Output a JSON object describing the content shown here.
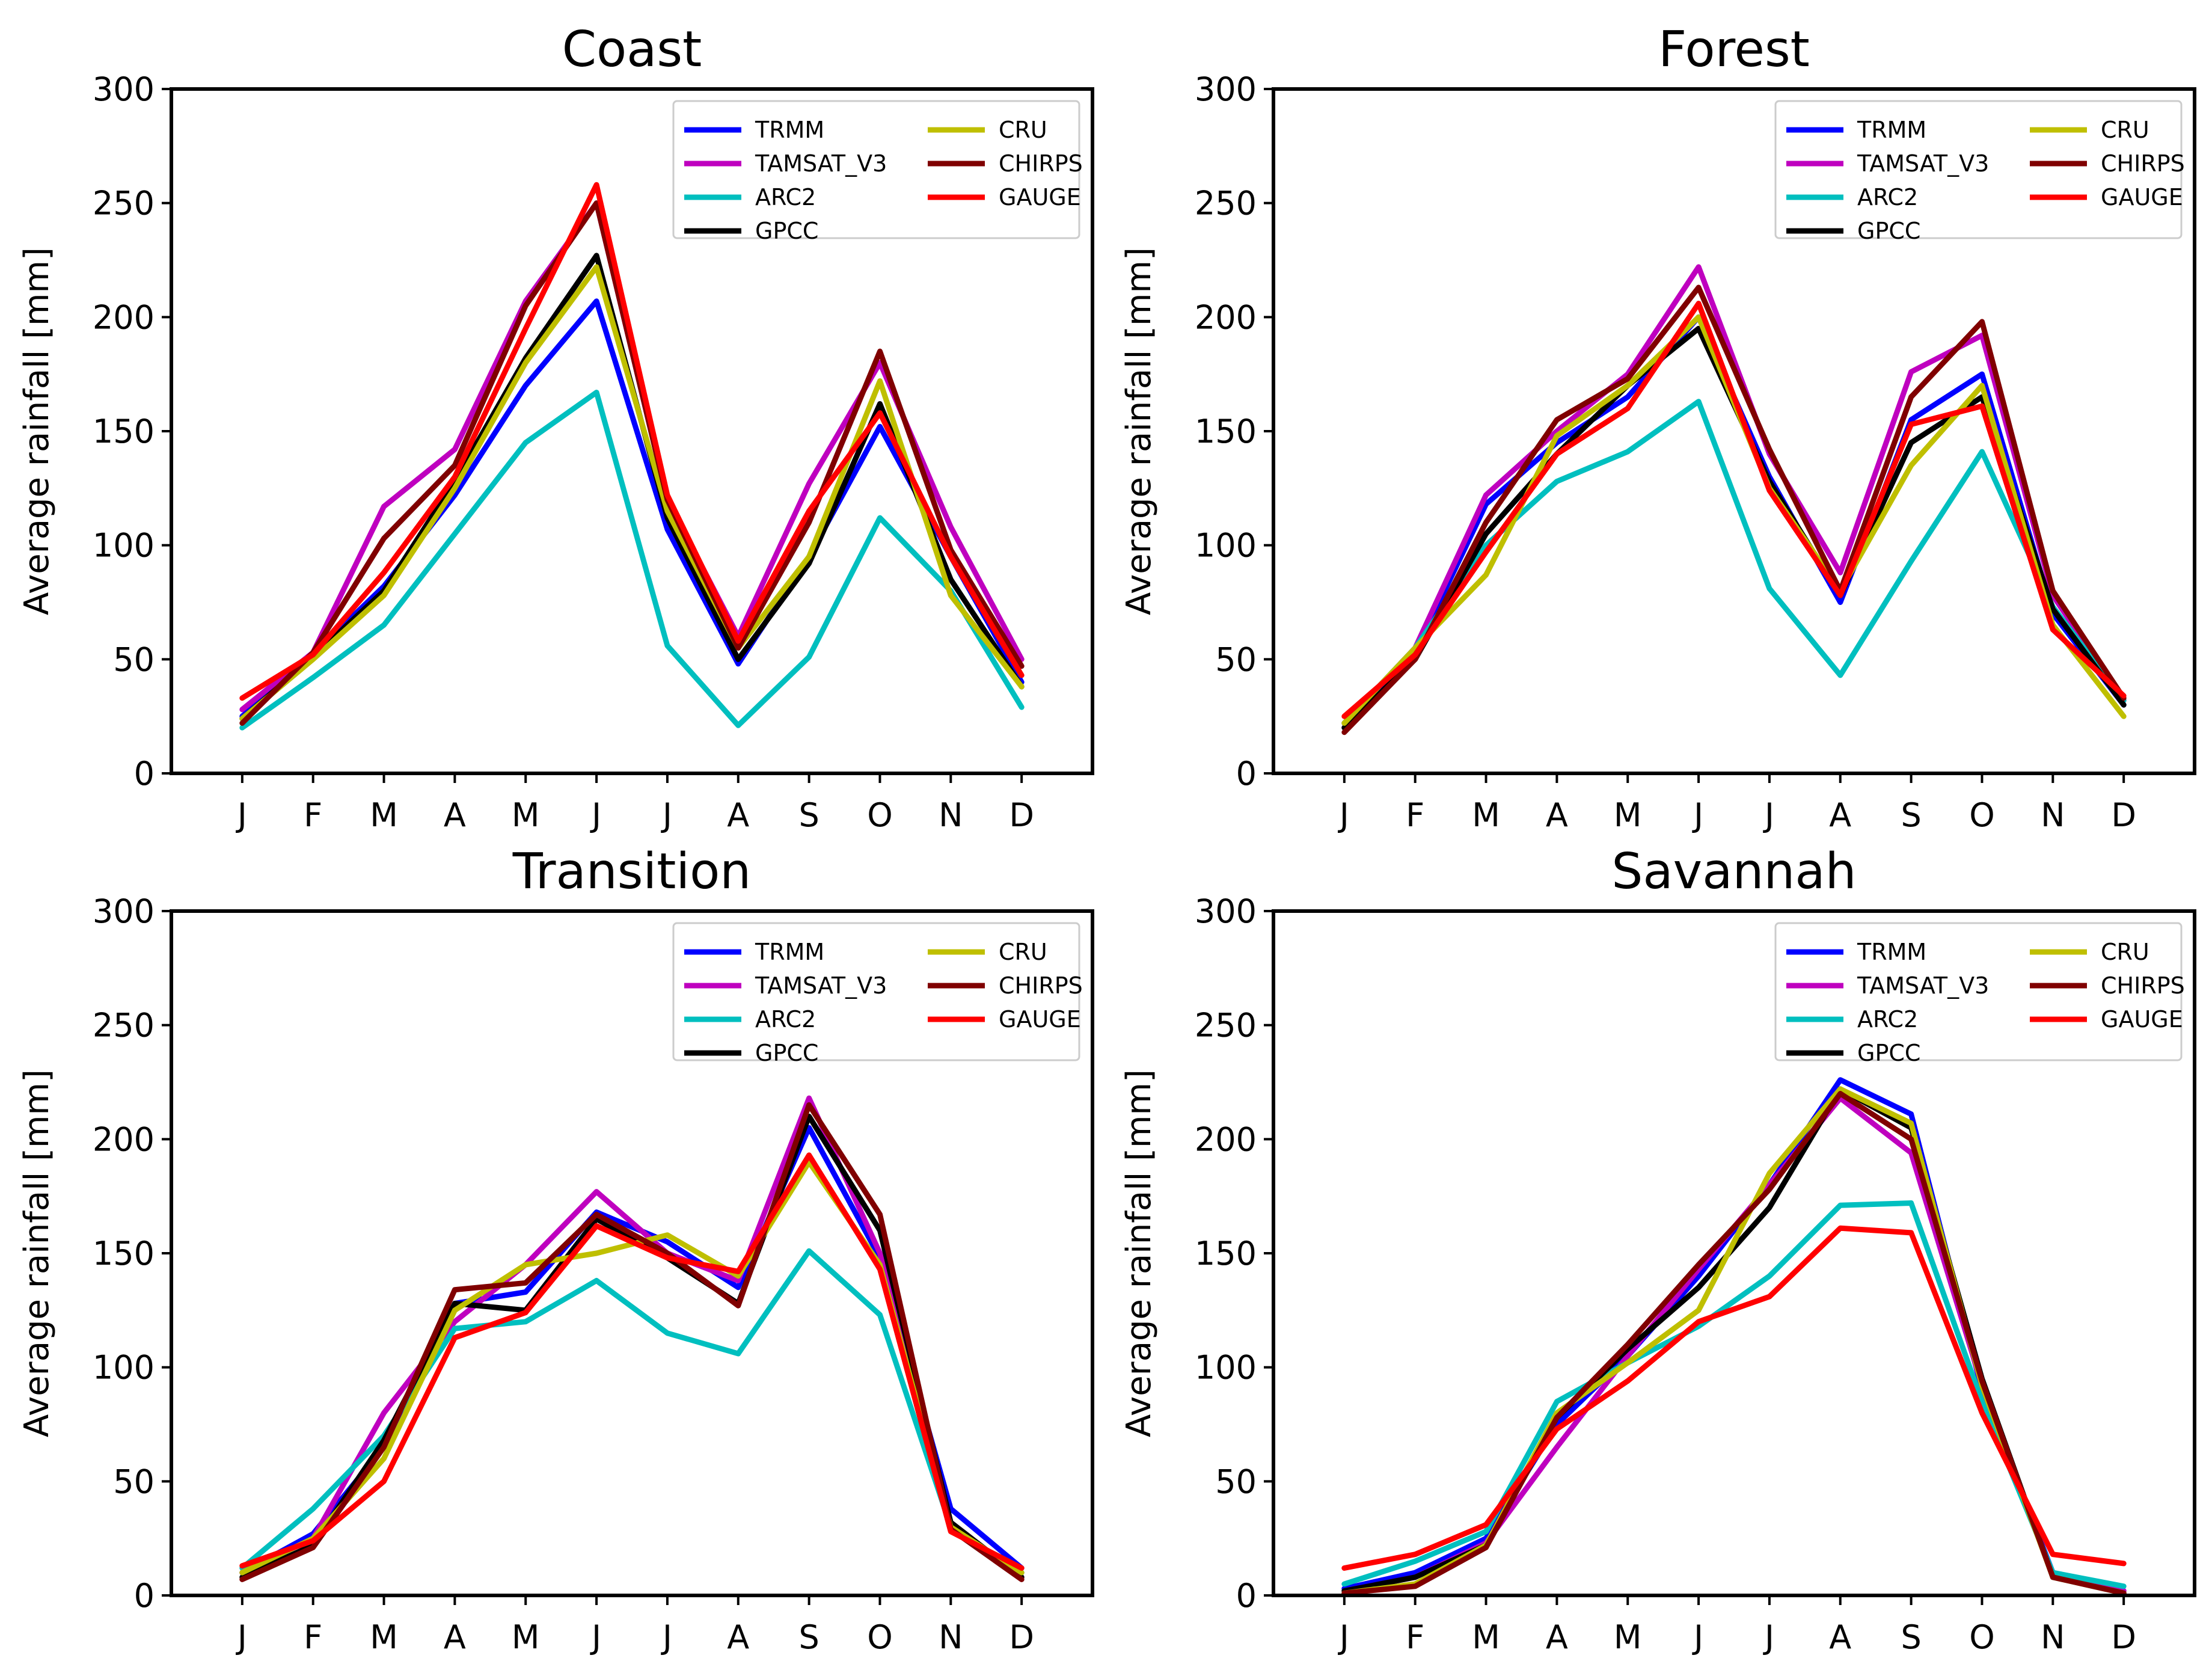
{
  "figure": {
    "months": [
      "J",
      "F",
      "M",
      "A",
      "M",
      "J",
      "J",
      "A",
      "S",
      "O",
      "N",
      "D"
    ],
    "ylabel": "Average rainfall [mm]",
    "ylim": [
      0,
      300
    ],
    "yticks": [
      0,
      50,
      100,
      150,
      200,
      250,
      300
    ],
    "colors": {
      "TRMM": "#0000ff",
      "TAMSAT_V3": "#bf00bf",
      "ARC2": "#00bfbf",
      "GPCC": "#000000",
      "CRU": "#bfbf00",
      "CHIRPS": "#800000",
      "GAUGE": "#ff0000"
    },
    "legend": [
      "TRMM",
      "TAMSAT_V3",
      "ARC2",
      "GPCC",
      "CRU",
      "CHIRPS",
      "GAUGE"
    ]
  },
  "chart_data": [
    {
      "type": "line",
      "title": "Coast",
      "xlabel": "",
      "ylabel": "Average rainfall [mm]",
      "ylim": [
        0,
        300
      ],
      "categories": [
        "J",
        "F",
        "M",
        "A",
        "M",
        "J",
        "J",
        "A",
        "S",
        "O",
        "N",
        "D"
      ],
      "legend_position": "top-right",
      "series": [
        {
          "name": "TRMM",
          "values": [
            25,
            52,
            82,
            122,
            170,
            207,
            107,
            48,
            95,
            152,
            95,
            40
          ]
        },
        {
          "name": "TAMSAT_V3",
          "values": [
            28,
            53,
            117,
            142,
            207,
            250,
            120,
            60,
            127,
            180,
            108,
            50
          ]
        },
        {
          "name": "ARC2",
          "values": [
            20,
            42,
            65,
            105,
            145,
            167,
            56,
            21,
            51,
            112,
            80,
            29
          ]
        },
        {
          "name": "GPCC",
          "values": [
            24,
            51,
            80,
            128,
            182,
            227,
            112,
            50,
            92,
            162,
            85,
            38
          ]
        },
        {
          "name": "CRU",
          "values": [
            24,
            50,
            78,
            125,
            180,
            222,
            115,
            55,
            95,
            172,
            78,
            38
          ]
        },
        {
          "name": "CHIRPS",
          "values": [
            22,
            53,
            103,
            135,
            205,
            250,
            120,
            55,
            110,
            185,
            98,
            47
          ]
        },
        {
          "name": "GAUGE",
          "values": [
            33,
            52,
            88,
            130,
            195,
            258,
            122,
            58,
            115,
            158,
            95,
            43
          ]
        }
      ]
    },
    {
      "type": "line",
      "title": "Forest",
      "xlabel": "",
      "ylabel": "Average rainfall [mm]",
      "ylim": [
        0,
        300
      ],
      "categories": [
        "J",
        "F",
        "M",
        "A",
        "M",
        "J",
        "J",
        "A",
        "S",
        "O",
        "N",
        "D"
      ],
      "legend_position": "top-right",
      "series": [
        {
          "name": "TRMM",
          "values": [
            20,
            53,
            118,
            145,
            165,
            200,
            130,
            75,
            155,
            175,
            70,
            30
          ]
        },
        {
          "name": "TAMSAT_V3",
          "values": [
            22,
            55,
            122,
            150,
            175,
            222,
            140,
            88,
            176,
            192,
            78,
            32
          ]
        },
        {
          "name": "ARC2",
          "values": [
            22,
            55,
            100,
            128,
            141,
            163,
            81,
            43,
            93,
            141,
            73,
            32
          ]
        },
        {
          "name": "GPCC",
          "values": [
            20,
            50,
            105,
            140,
            170,
            195,
            128,
            78,
            145,
            165,
            72,
            30
          ]
        },
        {
          "name": "CRU",
          "values": [
            22,
            55,
            87,
            148,
            170,
            200,
            125,
            80,
            135,
            170,
            65,
            25
          ]
        },
        {
          "name": "CHIRPS",
          "values": [
            18,
            50,
            110,
            155,
            173,
            213,
            142,
            80,
            165,
            198,
            80,
            33
          ]
        },
        {
          "name": "GAUGE",
          "values": [
            25,
            52,
            97,
            140,
            160,
            206,
            124,
            78,
            153,
            161,
            63,
            34
          ]
        }
      ]
    },
    {
      "type": "line",
      "title": "Transition",
      "xlabel": "",
      "ylabel": "Average rainfall [mm]",
      "ylim": [
        0,
        300
      ],
      "categories": [
        "J",
        "F",
        "M",
        "A",
        "M",
        "J",
        "J",
        "A",
        "S",
        "O",
        "N",
        "D"
      ],
      "legend_position": "top-right",
      "series": [
        {
          "name": "TRMM",
          "values": [
            10,
            27,
            65,
            128,
            133,
            168,
            155,
            135,
            205,
            148,
            38,
            12
          ]
        },
        {
          "name": "TAMSAT_V3",
          "values": [
            10,
            25,
            80,
            120,
            145,
            177,
            150,
            138,
            218,
            150,
            32,
            8
          ]
        },
        {
          "name": "ARC2",
          "values": [
            12,
            38,
            70,
            117,
            120,
            138,
            115,
            106,
            151,
            123,
            30,
            10
          ]
        },
        {
          "name": "GPCC",
          "values": [
            8,
            22,
            68,
            128,
            125,
            165,
            148,
            128,
            210,
            160,
            32,
            8
          ]
        },
        {
          "name": "CRU",
          "values": [
            10,
            25,
            60,
            125,
            145,
            150,
            158,
            140,
            190,
            145,
            30,
            10
          ]
        },
        {
          "name": "CHIRPS",
          "values": [
            7,
            21,
            65,
            134,
            137,
            167,
            150,
            127,
            215,
            167,
            29,
            7
          ]
        },
        {
          "name": "GAUGE",
          "values": [
            13,
            24,
            50,
            113,
            124,
            162,
            148,
            142,
            193,
            143,
            28,
            12
          ]
        }
      ]
    },
    {
      "type": "line",
      "title": "Savannah",
      "xlabel": "",
      "ylabel": "Average rainfall [mm]",
      "ylim": [
        0,
        300
      ],
      "categories": [
        "J",
        "F",
        "M",
        "A",
        "M",
        "J",
        "J",
        "A",
        "S",
        "O",
        "N",
        "D"
      ],
      "legend_position": "top-right",
      "series": [
        {
          "name": "TRMM",
          "values": [
            3,
            10,
            25,
            75,
            105,
            140,
            180,
            226,
            211,
            90,
            10,
            2
          ]
        },
        {
          "name": "TAMSAT_V3",
          "values": [
            2,
            8,
            23,
            65,
            105,
            143,
            180,
            218,
            194,
            92,
            9,
            2
          ]
        },
        {
          "name": "ARC2",
          "values": [
            5,
            15,
            28,
            85,
            102,
            118,
            140,
            171,
            172,
            85,
            10,
            4
          ]
        },
        {
          "name": "GPCC",
          "values": [
            2,
            8,
            22,
            78,
            108,
            135,
            170,
            222,
            205,
            95,
            8,
            1
          ]
        },
        {
          "name": "CRU",
          "values": [
            1,
            5,
            22,
            80,
            102,
            125,
            185,
            222,
            207,
            92,
            8,
            1
          ]
        },
        {
          "name": "CHIRPS",
          "values": [
            1,
            4,
            21,
            78,
            110,
            145,
            178,
            220,
            200,
            94,
            8,
            1
          ]
        },
        {
          "name": "GAUGE",
          "values": [
            12,
            18,
            31,
            73,
            94,
            120,
            131,
            161,
            159,
            80,
            18,
            14
          ]
        }
      ]
    }
  ]
}
